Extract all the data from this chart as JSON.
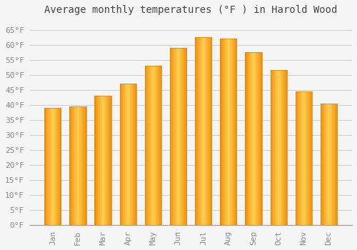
{
  "title": "Average monthly temperatures (°F ) in Harold Wood",
  "months": [
    "Jan",
    "Feb",
    "Mar",
    "Apr",
    "May",
    "Jun",
    "Jul",
    "Aug",
    "Sep",
    "Oct",
    "Nov",
    "Dec"
  ],
  "values": [
    39,
    39.5,
    43,
    47,
    53,
    59,
    62.5,
    62,
    57.5,
    51.5,
    44.5,
    40.5
  ],
  "bar_color_center": "#FFD050",
  "bar_color_edge": "#F5A020",
  "ylim": [
    0,
    68
  ],
  "yticks": [
    0,
    5,
    10,
    15,
    20,
    25,
    30,
    35,
    40,
    45,
    50,
    55,
    60,
    65
  ],
  "background_color": "#F5F5F5",
  "grid_color": "#CCCCCC",
  "title_fontsize": 10,
  "tick_fontsize": 8,
  "font_family": "monospace",
  "tick_color": "#888888",
  "title_color": "#444444"
}
